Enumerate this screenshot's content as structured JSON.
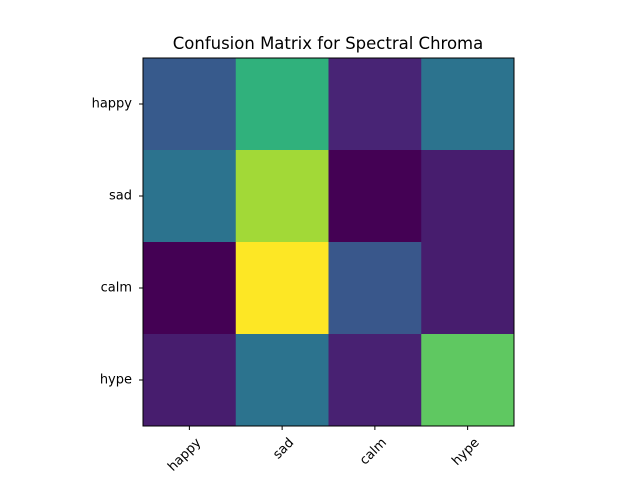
{
  "chart_data": {
    "type": "heatmap",
    "title": "Confusion Matrix for Spectral Chroma",
    "xlabel": "",
    "ylabel": "",
    "x_categories": [
      "happy",
      "sad",
      "calm",
      "hype"
    ],
    "y_categories": [
      "happy",
      "sad",
      "calm",
      "hype"
    ],
    "values": [
      [
        0.28,
        0.64,
        0.1,
        0.38
      ],
      [
        0.38,
        0.86,
        0.0,
        0.08
      ],
      [
        0.0,
        1.0,
        0.27,
        0.08
      ],
      [
        0.08,
        0.38,
        0.09,
        0.75
      ]
    ],
    "colormap": "viridis",
    "colorbar": false,
    "grid": false,
    "x_tick_rotation_deg": 45
  }
}
